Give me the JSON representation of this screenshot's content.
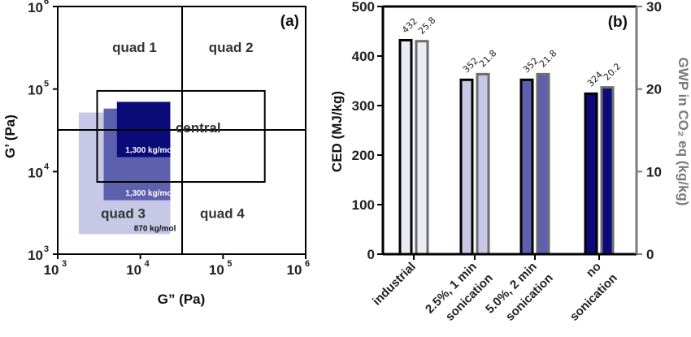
{
  "chart_data": [
    {
      "type": "scatter",
      "panel_label": "(a)",
      "xlabel": "G” (Pa)",
      "ylabel": "G’ (Pa)",
      "xscale": "log",
      "yscale": "log",
      "xlim": [
        1000,
        1000000
      ],
      "ylim": [
        1000,
        1000000
      ],
      "x_ticks": [
        {
          "base": "10",
          "exp": "3",
          "value": 1000
        },
        {
          "base": "10",
          "exp": "4",
          "value": 10000
        },
        {
          "base": "10",
          "exp": "5",
          "value": 100000
        },
        {
          "base": "10",
          "exp": "6",
          "value": 1000000
        }
      ],
      "y_ticks": [
        {
          "base": "10",
          "exp": "3",
          "value": 1000
        },
        {
          "base": "10",
          "exp": "4",
          "value": 10000
        },
        {
          "base": "10",
          "exp": "5",
          "value": 100000
        },
        {
          "base": "10",
          "exp": "6",
          "value": 1000000
        }
      ],
      "divider": {
        "x": 32000,
        "y": 32000
      },
      "central_region": {
        "label": "central",
        "x": [
          3000,
          320000
        ],
        "y": [
          7500,
          95000
        ]
      },
      "quadrants": [
        {
          "label": "quad 1",
          "x": 8500,
          "y": 280000
        },
        {
          "label": "quad 2",
          "x": 125000,
          "y": 280000
        },
        {
          "label": "quad 3",
          "x": 6200,
          "y": 2750
        },
        {
          "label": "quad 4",
          "x": 98000,
          "y": 2750
        }
      ],
      "regions": [
        {
          "label": "870 kg/mol",
          "x": [
            1800,
            23000
          ],
          "y": [
            1750,
            52000
          ],
          "color": "#c7c8e6",
          "label_color": "#111111",
          "label_at": [
            15000,
            1900
          ]
        },
        {
          "label": "1,300 kg/mol",
          "x": [
            3600,
            23000
          ],
          "y": [
            4500,
            58000
          ],
          "color": "#5d60ad",
          "label_color": "#ffffff",
          "label_at": [
            13000,
            5100
          ]
        },
        {
          "label": "1,300 kg/mol",
          "x": [
            5200,
            23000
          ],
          "y": [
            15000,
            70000
          ],
          "color": "#0a0a78",
          "label_color": "#ffffff",
          "label_at": [
            13000,
            17000
          ]
        }
      ]
    },
    {
      "type": "bar",
      "panel_label": "(b)",
      "categories": [
        [
          "industrial"
        ],
        [
          "2.5%, 1 min",
          "sonication"
        ],
        [
          "5.0%, 2 min",
          "sonication"
        ],
        [
          "no",
          "sonication"
        ]
      ],
      "ylabel": "CED (MJ/kg)",
      "y2label": "GWP in CO₂ eq (kg/kg)",
      "ylim": [
        0,
        500
      ],
      "y2lim": [
        0,
        30
      ],
      "y_ticks": [
        0,
        100,
        200,
        300,
        400,
        500
      ],
      "y2_ticks": [
        0,
        10,
        20,
        30
      ],
      "series": [
        {
          "axis": "left",
          "values": [
            432,
            352,
            352,
            324
          ],
          "labels": [
            "432",
            "352",
            "352",
            "324"
          ],
          "fill": [
            "#ececf6",
            "#c7c8e6",
            "#5d60ad",
            "#0a0a78"
          ],
          "stroke": "#000000"
        },
        {
          "axis": "right",
          "values": [
            25.8,
            21.8,
            21.8,
            20.2
          ],
          "labels": [
            "25.8",
            "21.8",
            "21.8",
            "20.2"
          ],
          "fill": [
            "#ececf6",
            "#c7c8e6",
            "#5d60ad",
            "#0a0a78"
          ],
          "stroke": "#6e6e6e"
        }
      ],
      "colors": {
        "left_axis": "#000000",
        "right_axis": "#7a7a7a"
      }
    }
  ]
}
